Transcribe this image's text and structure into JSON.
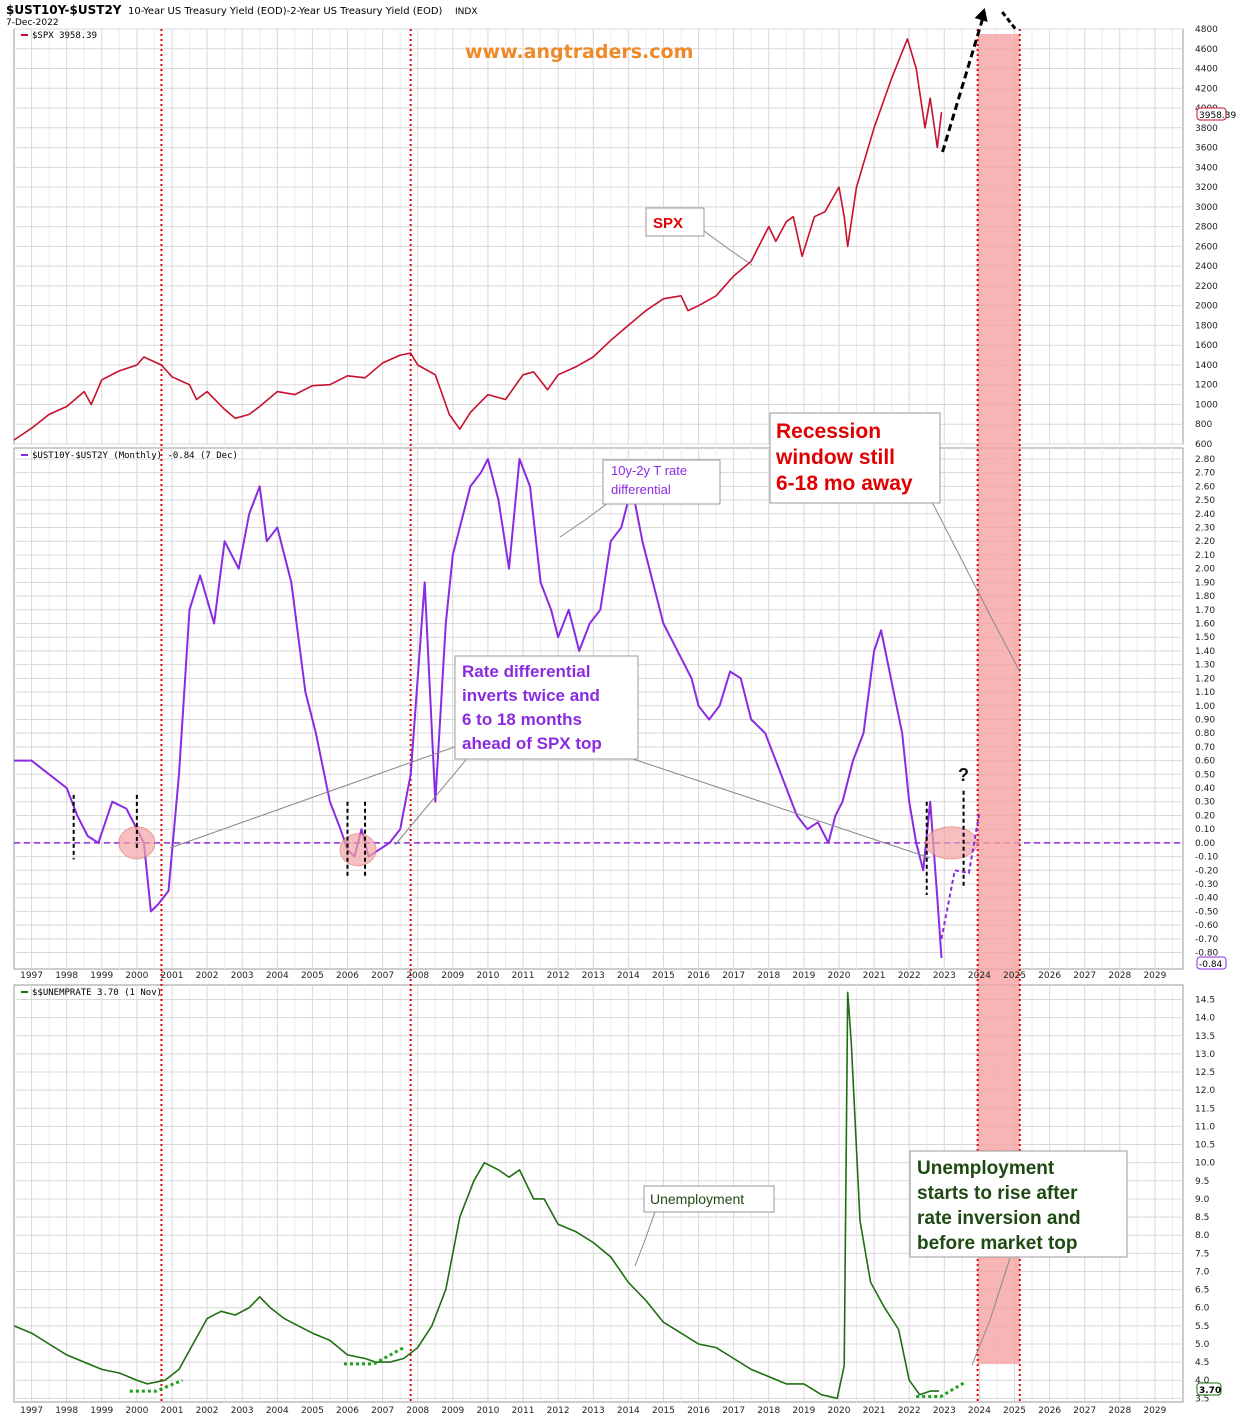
{
  "header": {
    "symbol": "$UST10Y-$UST2Y",
    "description": "10-Year US Treasury Yield (EOD)-2-Year US Treasury Yield (EOD)",
    "exchange": "INDX",
    "date": "7-Dec-2022",
    "watermark": "www.angtraders.com"
  },
  "colors": {
    "spx": "#c8102e",
    "spread": "#8a2be2",
    "unemployment": "#1f6e12",
    "recession_fill": "#f5a3a3",
    "red_dotted": "#e00000",
    "annotation_red": "#e00000",
    "annotation_purple": "#8a2be2",
    "annotation_green": "#1e4a12",
    "grid": "#d8d8d8"
  },
  "chart_data": [
    {
      "type": "line",
      "panel": "top",
      "legend": "$SPX 3958.39",
      "last_value_label": "3958.39",
      "series": [
        {
          "name": "$SPX",
          "x": [
            1996.5,
            1997.0,
            1997.5,
            1998.0,
            1998.5,
            1998.7,
            1999.0,
            1999.5,
            2000.0,
            2000.2,
            2000.7,
            2001.0,
            2001.5,
            2001.7,
            2002.0,
            2002.5,
            2002.8,
            2003.2,
            2003.5,
            2004.0,
            2004.5,
            2005.0,
            2005.5,
            2006.0,
            2006.5,
            2007.0,
            2007.5,
            2007.8,
            2008.0,
            2008.5,
            2008.9,
            2009.2,
            2009.5,
            2010.0,
            2010.5,
            2011.0,
            2011.3,
            2011.7,
            2012.0,
            2012.5,
            2013.0,
            2013.5,
            2014.0,
            2014.5,
            2015.0,
            2015.5,
            2015.7,
            2016.0,
            2016.5,
            2017.0,
            2017.5,
            2018.0,
            2018.2,
            2018.5,
            2018.7,
            2018.95,
            2019.3,
            2019.6,
            2020.0,
            2020.15,
            2020.25,
            2020.5,
            2021.0,
            2021.5,
            2021.95,
            2022.2,
            2022.45,
            2022.6,
            2022.8,
            2022.92
          ],
          "values": [
            640,
            760,
            900,
            980,
            1130,
            1000,
            1250,
            1340,
            1400,
            1480,
            1400,
            1280,
            1200,
            1050,
            1130,
            950,
            860,
            900,
            980,
            1130,
            1100,
            1190,
            1200,
            1290,
            1270,
            1420,
            1500,
            1520,
            1400,
            1300,
            900,
            750,
            920,
            1100,
            1050,
            1300,
            1330,
            1150,
            1300,
            1380,
            1480,
            1650,
            1800,
            1950,
            2070,
            2100,
            1950,
            2000,
            2100,
            2300,
            2450,
            2800,
            2650,
            2850,
            2900,
            2500,
            2900,
            2950,
            3200,
            2900,
            2600,
            3200,
            3800,
            4300,
            4700,
            4400,
            3800,
            4100,
            3600,
            3958
          ]
        }
      ],
      "ylim": [
        600,
        4800
      ],
      "yticks": [
        600,
        800,
        1000,
        1200,
        1400,
        1600,
        1800,
        2000,
        2200,
        2400,
        2600,
        2800,
        3000,
        3200,
        3400,
        3600,
        3800,
        4000,
        4200,
        4400,
        4600,
        4800
      ],
      "annotations": [
        "SPX"
      ]
    },
    {
      "type": "line",
      "panel": "middle",
      "legend": "$UST10Y-$UST2Y (Monthly) -0.84 (7 Dec)",
      "last_value_label": "-0.84",
      "series": [
        {
          "name": "$UST10Y-$UST2Y (Monthly)",
          "x": [
            1996.5,
            1997.0,
            1997.5,
            1998.0,
            1998.3,
            1998.6,
            1998.9,
            1999.3,
            1999.7,
            2000.0,
            2000.2,
            2000.4,
            2000.6,
            2000.9,
            2001.2,
            2001.5,
            2001.8,
            2002.2,
            2002.5,
            2002.9,
            2003.2,
            2003.5,
            2003.7,
            2004.0,
            2004.4,
            2004.8,
            2005.1,
            2005.5,
            2005.8,
            2006.0,
            2006.2,
            2006.4,
            2006.6,
            2006.9,
            2007.2,
            2007.5,
            2007.8,
            2008.0,
            2008.2,
            2008.5,
            2008.8,
            2009.0,
            2009.2,
            2009.5,
            2009.8,
            2010.0,
            2010.3,
            2010.6,
            2010.9,
            2011.2,
            2011.5,
            2011.8,
            2012.0,
            2012.3,
            2012.6,
            2012.9,
            2013.2,
            2013.5,
            2013.8,
            2014.1,
            2014.4,
            2014.7,
            2015.0,
            2015.4,
            2015.8,
            2016.0,
            2016.3,
            2016.6,
            2016.9,
            2017.2,
            2017.5,
            2017.9,
            2018.2,
            2018.5,
            2018.8,
            2019.1,
            2019.4,
            2019.7,
            2019.9,
            2020.1,
            2020.4,
            2020.7,
            2021.0,
            2021.2,
            2021.4,
            2021.6,
            2021.8,
            2022.0,
            2022.2,
            2022.4,
            2022.6,
            2022.8,
            2022.92
          ],
          "values": [
            0.6,
            0.6,
            0.5,
            0.4,
            0.2,
            0.05,
            0.0,
            0.3,
            0.25,
            0.1,
            0.0,
            -0.5,
            -0.45,
            -0.35,
            0.5,
            1.7,
            1.95,
            1.6,
            2.2,
            2.0,
            2.4,
            2.6,
            2.2,
            2.3,
            1.9,
            1.1,
            0.8,
            0.3,
            0.1,
            -0.05,
            -0.1,
            0.1,
            -0.1,
            -0.05,
            0.0,
            0.1,
            0.5,
            1.2,
            1.9,
            0.3,
            1.6,
            2.1,
            2.3,
            2.6,
            2.7,
            2.8,
            2.5,
            2.0,
            2.8,
            2.6,
            1.9,
            1.7,
            1.5,
            1.7,
            1.4,
            1.6,
            1.7,
            2.2,
            2.3,
            2.6,
            2.2,
            1.9,
            1.6,
            1.4,
            1.2,
            1.0,
            0.9,
            1.0,
            1.25,
            1.2,
            0.9,
            0.8,
            0.6,
            0.4,
            0.2,
            0.1,
            0.15,
            0.0,
            0.2,
            0.3,
            0.6,
            0.8,
            1.4,
            1.55,
            1.3,
            1.05,
            0.8,
            0.3,
            0.0,
            -0.2,
            0.3,
            -0.4,
            -0.84
          ]
        }
      ],
      "ylim": [
        -0.84,
        2.85
      ],
      "yticks": [
        -0.8,
        -0.7,
        -0.6,
        -0.5,
        -0.4,
        -0.3,
        -0.2,
        -0.1,
        0.0,
        0.1,
        0.2,
        0.3,
        0.4,
        0.5,
        0.6,
        0.7,
        0.8,
        0.9,
        1.0,
        1.1,
        1.2,
        1.3,
        1.4,
        1.5,
        1.6,
        1.7,
        1.8,
        1.9,
        2.0,
        2.1,
        2.2,
        2.3,
        2.4,
        2.5,
        2.6,
        2.7,
        2.8
      ],
      "xticks": [
        "1997",
        "1998",
        "1999",
        "2000",
        "2001",
        "2002",
        "2003",
        "2004",
        "2005",
        "2006",
        "2007",
        "2008",
        "2009",
        "2010",
        "2011",
        "2012",
        "2013",
        "2014",
        "2015",
        "2016",
        "2017",
        "2018",
        "2019",
        "2020",
        "2021",
        "2022",
        "2023",
        "2024",
        "2025",
        "2026",
        "2027",
        "2028",
        "2029"
      ],
      "annotations": [
        "10y-2y T rate differential",
        "Rate differential inverts twice and 6 to 18 months ahead of SPX top",
        "Recession window still 6-18 mo away",
        "?"
      ]
    },
    {
      "type": "line",
      "panel": "bottom",
      "legend": "$$UNEMPRATE 3.70 (1 Nov)",
      "last_value_label": "3.70",
      "series": [
        {
          "name": "$$UNEMPRATE",
          "x": [
            1996.5,
            1997.0,
            1997.5,
            1998.0,
            1998.5,
            1999.0,
            1999.5,
            2000.0,
            2000.3,
            2000.8,
            2001.2,
            2001.6,
            2002.0,
            2002.4,
            2002.8,
            2003.2,
            2003.5,
            2003.8,
            2004.2,
            2004.6,
            2005.0,
            2005.5,
            2006.0,
            2006.5,
            2006.8,
            2007.2,
            2007.6,
            2008.0,
            2008.4,
            2008.8,
            2009.2,
            2009.6,
            2009.9,
            2010.3,
            2010.6,
            2010.9,
            2011.3,
            2011.6,
            2012.0,
            2012.5,
            2013.0,
            2013.5,
            2014.0,
            2014.5,
            2015.0,
            2015.5,
            2016.0,
            2016.5,
            2017.0,
            2017.5,
            2018.0,
            2018.5,
            2019.0,
            2019.5,
            2019.95,
            2020.15,
            2020.25,
            2020.35,
            2020.6,
            2020.9,
            2021.3,
            2021.7,
            2022.0,
            2022.3,
            2022.6,
            2022.85
          ],
          "values": [
            5.5,
            5.3,
            5.0,
            4.7,
            4.5,
            4.3,
            4.2,
            4.0,
            3.9,
            4.0,
            4.3,
            5.0,
            5.7,
            5.9,
            5.8,
            6.0,
            6.3,
            6.0,
            5.7,
            5.5,
            5.3,
            5.1,
            4.7,
            4.6,
            4.5,
            4.5,
            4.6,
            4.9,
            5.5,
            6.5,
            8.5,
            9.5,
            10.0,
            9.8,
            9.6,
            9.8,
            9.0,
            9.0,
            8.3,
            8.1,
            7.8,
            7.4,
            6.7,
            6.2,
            5.6,
            5.3,
            5.0,
            4.9,
            4.6,
            4.3,
            4.1,
            3.9,
            3.9,
            3.6,
            3.5,
            4.4,
            14.7,
            13.3,
            8.4,
            6.7,
            6.0,
            5.4,
            4.0,
            3.6,
            3.7,
            3.7
          ]
        }
      ],
      "ylim": [
        3.5,
        14.8
      ],
      "yticks": [
        3.5,
        4.0,
        4.5,
        5.0,
        5.5,
        6.0,
        6.5,
        7.0,
        7.5,
        8.0,
        8.5,
        9.0,
        9.5,
        10.0,
        10.5,
        11.0,
        11.5,
        12.0,
        12.5,
        13.0,
        13.5,
        14.0,
        14.5
      ],
      "xticks": [
        "1997",
        "1998",
        "1999",
        "2000",
        "2001",
        "2002",
        "2003",
        "2004",
        "2005",
        "2006",
        "2007",
        "2008",
        "2009",
        "2010",
        "2011",
        "2012",
        "2013",
        "2014",
        "2015",
        "2016",
        "2017",
        "2018",
        "2019",
        "2020",
        "2021",
        "2022",
        "2023",
        "2024",
        "2025",
        "2026",
        "2027",
        "2028",
        "2029"
      ],
      "annotations": [
        "Unemployment",
        "Unemployment starts to rise after rate inversion and before market top"
      ]
    }
  ],
  "overlays": {
    "red_dotted_years": [
      2000.7,
      2007.8,
      2023.95,
      2025.15
    ],
    "recession_window": [
      2023.95,
      2025.15
    ],
    "x_range": [
      1996.5,
      2029.8
    ]
  },
  "labels": {
    "spx_box": "SPX",
    "spread_box": [
      "10y-2y T rate",
      "differential"
    ],
    "inversion_box": [
      "Rate differential",
      "inverts twice and",
      "6 to 18 months",
      "ahead of SPX top"
    ],
    "recession_box": [
      "Recession",
      "window still",
      "6-18 mo away"
    ],
    "question": "?",
    "unemp_box": "Unemployment",
    "unemp_rise_box": [
      "Unemployment",
      "starts to rise after",
      "rate inversion and",
      "before market top"
    ]
  }
}
